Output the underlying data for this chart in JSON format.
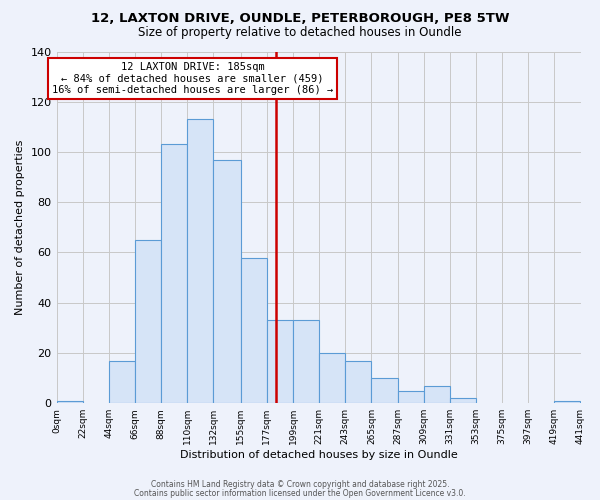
{
  "title1": "12, LAXTON DRIVE, OUNDLE, PETERBOROUGH, PE8 5TW",
  "title2": "Size of property relative to detached houses in Oundle",
  "xlabel": "Distribution of detached houses by size in Oundle",
  "ylabel": "Number of detached properties",
  "bin_edges": [
    0,
    22,
    44,
    66,
    88,
    110,
    132,
    155,
    177,
    199,
    221,
    243,
    265,
    287,
    309,
    331,
    353,
    375,
    397,
    419,
    441
  ],
  "bar_heights": [
    1,
    0,
    17,
    65,
    103,
    113,
    97,
    58,
    33,
    33,
    20,
    17,
    10,
    5,
    7,
    2,
    0,
    0,
    0,
    1
  ],
  "bar_color": "#d6e4f7",
  "bar_edge_color": "#5b9bd5",
  "property_size": 185,
  "vline_color": "#cc0000",
  "ylim": [
    0,
    140
  ],
  "yticks": [
    0,
    20,
    40,
    60,
    80,
    100,
    120,
    140
  ],
  "annotation_title": "12 LAXTON DRIVE: 185sqm",
  "annotation_line1": "← 84% of detached houses are smaller (459)",
  "annotation_line2": "16% of semi-detached houses are larger (86) →",
  "annotation_box_facecolor": "#ffffff",
  "annotation_box_edgecolor": "#cc0000",
  "footer1": "Contains HM Land Registry data © Crown copyright and database right 2025.",
  "footer2": "Contains public sector information licensed under the Open Government Licence v3.0.",
  "background_color": "#eef2fb",
  "grid_color": "#c8c8c8",
  "title1_fontsize": 9.5,
  "title2_fontsize": 8.5,
  "xlabel_fontsize": 8,
  "ylabel_fontsize": 8,
  "xtick_fontsize": 6.5,
  "ytick_fontsize": 8,
  "annotation_fontsize": 7.5,
  "footer_fontsize": 5.5
}
